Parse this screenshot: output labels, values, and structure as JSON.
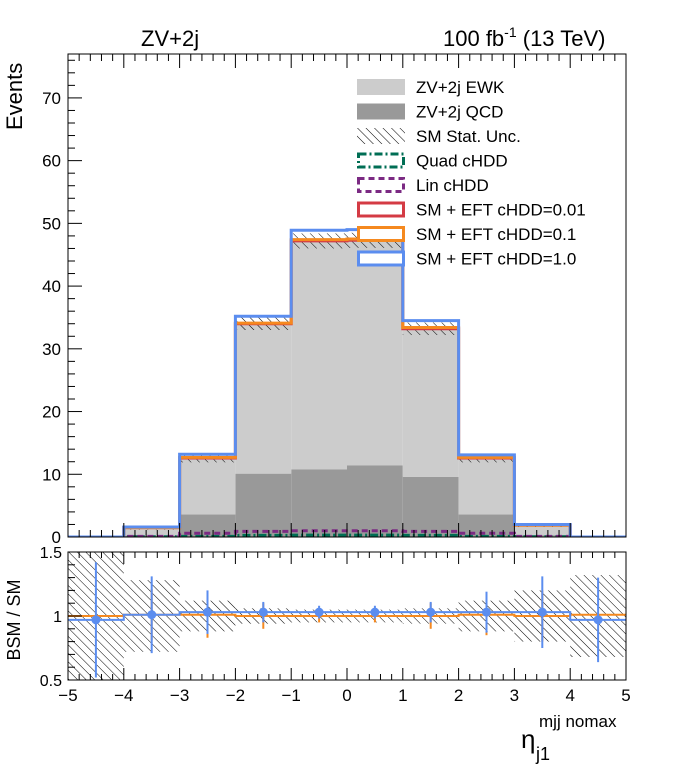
{
  "header": {
    "process": "ZV+2j",
    "lumi_main": "100 fb",
    "lumi_exp": "-1",
    "lumi_tail": " (13 TeV)"
  },
  "chart_data": [
    {
      "type": "bar",
      "panel": "main",
      "ylabel": "Events",
      "xlim": [
        -5,
        5
      ],
      "ylim": [
        0,
        77
      ],
      "yticks": [
        0,
        10,
        20,
        30,
        40,
        50,
        60,
        70
      ],
      "bin_edges": [
        -5,
        -4,
        -3,
        -2,
        -1,
        0,
        1,
        2,
        3,
        4,
        5
      ],
      "stacked": [
        {
          "name": "ZV+2j QCD",
          "color": "#999999",
          "values": [
            0,
            0.2,
            3.6,
            10.1,
            10.8,
            11.4,
            9.6,
            3.6,
            0.3,
            0
          ]
        },
        {
          "name": "ZV+2j EWK",
          "color": "#cccccc",
          "values": [
            0,
            1.3,
            9.0,
            23.9,
            36.4,
            35.9,
            23.6,
            9.0,
            1.6,
            0
          ]
        }
      ],
      "sm_total": [
        0,
        1.5,
        12.6,
        34.0,
        47.2,
        47.3,
        33.2,
        12.6,
        1.9,
        0
      ],
      "stat_unc": [
        0,
        0.3,
        0.7,
        1.0,
        1.2,
        1.2,
        1.0,
        0.7,
        0.3,
        0
      ],
      "overlays": [
        {
          "name": "Quad cHDD",
          "color": "#006e54",
          "style": "dash-dot",
          "values": [
            0,
            0.03,
            0.1,
            0.25,
            0.3,
            0.3,
            0.25,
            0.1,
            0.03,
            0
          ]
        },
        {
          "name": "Lin cHDD",
          "color": "#7b2a83",
          "style": "dashed",
          "values": [
            0,
            0.1,
            0.6,
            0.9,
            1.0,
            1.0,
            0.9,
            0.6,
            0.1,
            0
          ]
        },
        {
          "name": "SM + EFT cHDD=0.01",
          "color": "#d43b44",
          "style": "solid",
          "values": [
            0,
            1.5,
            12.6,
            34.0,
            47.2,
            47.3,
            33.2,
            12.6,
            1.9,
            0
          ]
        },
        {
          "name": "SM + EFT cHDD=0.1",
          "color": "#f5891f",
          "style": "solid",
          "values": [
            0,
            1.5,
            12.7,
            34.1,
            47.4,
            47.5,
            33.4,
            12.7,
            1.9,
            0
          ]
        },
        {
          "name": "SM + EFT cHDD=1.0",
          "color": "#5b8def",
          "style": "solid",
          "values": [
            0,
            1.6,
            13.2,
            35.2,
            48.9,
            49.0,
            34.5,
            13.1,
            2.0,
            0
          ]
        }
      ],
      "legend": [
        {
          "label": "ZV+2j EWK",
          "kind": "fill",
          "color": "#cccccc"
        },
        {
          "label": "ZV+2j QCD",
          "kind": "fill",
          "color": "#999999"
        },
        {
          "label": "SM Stat. Unc.",
          "kind": "hatch",
          "color": "#000000"
        },
        {
          "label": "Quad cHDD",
          "kind": "dashdot",
          "color": "#006e54"
        },
        {
          "label": "Lin cHDD",
          "kind": "dash",
          "color": "#7b2a83"
        },
        {
          "label": "SM + EFT cHDD=0.01",
          "kind": "box",
          "color": "#d43b44"
        },
        {
          "label": "SM + EFT cHDD=0.1",
          "kind": "box",
          "color": "#f5891f"
        },
        {
          "label": "SM + EFT cHDD=1.0",
          "kind": "box",
          "color": "#5b8def"
        }
      ],
      "legend_position": "top-right"
    },
    {
      "type": "scatter",
      "panel": "ratio",
      "ylabel": "BSM / SM",
      "xlabel_main": "η",
      "xlabel_sub": "j1",
      "xlabel_sup": "mjj nomax",
      "xlim": [
        -5,
        5
      ],
      "ylim": [
        0.5,
        1.5
      ],
      "yticks": [
        0.5,
        1,
        1.5
      ],
      "xticks": [
        -5,
        -4,
        -3,
        -2,
        -1,
        0,
        1,
        2,
        3,
        4,
        5
      ],
      "x": [
        -4.5,
        -3.5,
        -2.5,
        -1.5,
        -0.5,
        0.5,
        1.5,
        2.5,
        3.5,
        4.5
      ],
      "band_half_width": [
        0.62,
        0.28,
        0.12,
        0.06,
        0.05,
        0.05,
        0.06,
        0.12,
        0.2,
        0.32
      ],
      "series": [
        {
          "name": "SM + EFT cHDD=0.1",
          "color": "#f5891f",
          "values": [
            1.0,
            1.01,
            1.01,
            1.0,
            1.0,
            1.0,
            1.0,
            1.01,
            1.0,
            1.01
          ],
          "errors": [
            0.0,
            0.2,
            0.18,
            0.1,
            0.05,
            0.05,
            0.1,
            0.16,
            0.2,
            0.0
          ]
        },
        {
          "name": "SM + EFT cHDD=1.0",
          "color": "#5b8def",
          "values": [
            0.97,
            1.01,
            1.03,
            1.03,
            1.03,
            1.03,
            1.03,
            1.03,
            1.03,
            0.97
          ],
          "errors": [
            0.45,
            0.3,
            0.17,
            0.08,
            0.05,
            0.05,
            0.08,
            0.16,
            0.28,
            0.33
          ]
        }
      ]
    }
  ]
}
